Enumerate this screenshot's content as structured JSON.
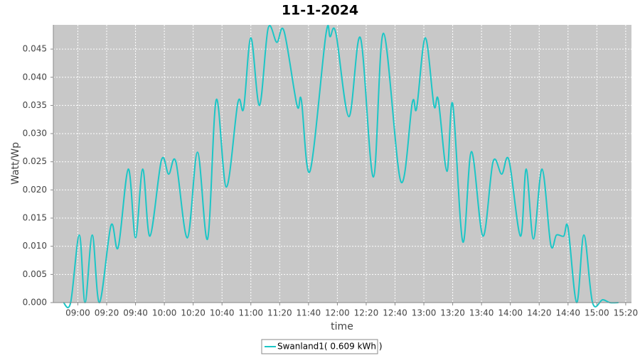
{
  "chart_data": {
    "type": "line",
    "title": "11-1-2024",
    "xlabel": "time",
    "ylabel": "Watt/Wp",
    "x": [
      "08:50",
      "08:55",
      "09:01",
      "09:05",
      "09:10",
      "09:15",
      "09:23",
      "09:28",
      "09:35",
      "09:40",
      "09:45",
      "09:50",
      "09:58",
      "10:03",
      "10:08",
      "10:16",
      "10:23",
      "10:30",
      "10:36",
      "10:43",
      "10:51",
      "10:55",
      "11:00",
      "11:06",
      "11:12",
      "11:18",
      "11:23",
      "11:32",
      "11:35",
      "11:41",
      "11:52",
      "11:55",
      "11:59",
      "12:08",
      "12:16",
      "12:25",
      "12:32",
      "12:44",
      "12:52",
      "12:55",
      "13:01",
      "13:07",
      "13:10",
      "13:16",
      "13:20",
      "13:27",
      "13:33",
      "13:41",
      "13:48",
      "13:54",
      "13:59",
      "14:07",
      "14:11",
      "14:16",
      "14:22",
      "14:28",
      "14:32",
      "14:37",
      "14:40",
      "14:46",
      "14:51",
      "14:57",
      "15:04",
      "15:09",
      "15:15"
    ],
    "series": [
      {
        "name": "Swanland1( 0.609 kWh )",
        "color": "#1cc6c6",
        "values": [
          0,
          0,
          0.012,
          0,
          0.012,
          0,
          0.0137,
          0.0098,
          0.0237,
          0.0115,
          0.0237,
          0.0118,
          0.0253,
          0.0228,
          0.025,
          0.0115,
          0.0267,
          0.0113,
          0.036,
          0.0205,
          0.0355,
          0.0345,
          0.047,
          0.035,
          0.0487,
          0.0462,
          0.0482,
          0.035,
          0.036,
          0.0233,
          0.0475,
          0.0472,
          0.0478,
          0.033,
          0.047,
          0.0223,
          0.0478,
          0.0215,
          0.0355,
          0.0345,
          0.047,
          0.035,
          0.036,
          0.0233,
          0.0353,
          0.0108,
          0.0268,
          0.0118,
          0.025,
          0.0228,
          0.0253,
          0.0118,
          0.0237,
          0.0113,
          0.0237,
          0.0103,
          0.012,
          0.0118,
          0.0133,
          0,
          0.012,
          0,
          0.0005,
          0,
          0
        ]
      }
    ],
    "xlim": [
      "08:43",
      "15:24"
    ],
    "xticks": [
      "09:00",
      "09:20",
      "09:40",
      "10:00",
      "10:20",
      "10:40",
      "11:00",
      "11:20",
      "11:40",
      "12:00",
      "12:20",
      "12:40",
      "13:00",
      "13:20",
      "13:40",
      "14:00",
      "14:20",
      "14:40",
      "15:00",
      "15:20"
    ],
    "ylim": [
      0,
      0.0493
    ],
    "yticks": [
      {
        "value": 0,
        "label": "0.000"
      },
      0.005,
      {
        "value": 0.01,
        "label": "0.010"
      },
      0.015,
      {
        "value": 0.02,
        "label": "0.020"
      },
      0.025,
      {
        "value": 0.03,
        "label": "0.030"
      },
      0.035,
      {
        "value": 0.04,
        "label": "0.040"
      },
      0.045
    ],
    "grid": true,
    "legend": "bottom"
  }
}
